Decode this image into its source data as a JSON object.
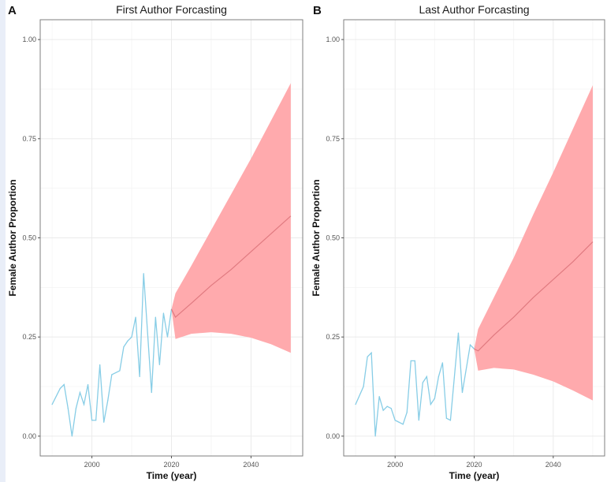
{
  "chart_data": [
    {
      "type": "line",
      "panel_label": "A",
      "title": "First Author Forcasting",
      "xlabel": "Time (year)",
      "ylabel": "Female Author Proportion",
      "xlim": [
        1987,
        2053
      ],
      "ylim": [
        -0.05,
        1.05
      ],
      "x_ticks": [
        2000,
        2020,
        2040
      ],
      "y_ticks": [
        "0.00",
        "0.25",
        "0.50",
        "0.75",
        "1.00"
      ],
      "grid": true,
      "colors": {
        "observed": "#87cde6",
        "forecast_band": "#ffaaad",
        "forecast_mean": "#e07a80"
      },
      "observed": {
        "x": [
          1990,
          1992,
          1993,
          1994,
          1995,
          1996,
          1997,
          1998,
          1999,
          2000,
          2001,
          2002,
          2003,
          2004,
          2005,
          2006,
          2007,
          2008,
          2009,
          2010,
          2011,
          2012,
          2013,
          2015,
          2016,
          2017,
          2018,
          2019,
          2020
        ],
        "y": [
          0.08,
          0.12,
          0.13,
          0.07,
          0.0,
          0.07,
          0.11,
          0.08,
          0.13,
          0.04,
          0.04,
          0.18,
          0.035,
          0.09,
          0.155,
          0.16,
          0.165,
          0.225,
          0.24,
          0.25,
          0.3,
          0.15,
          0.41,
          0.11,
          0.3,
          0.18,
          0.31,
          0.25,
          0.32
        ]
      },
      "forecast": {
        "x": [
          2021,
          2025,
          2030,
          2035,
          2040,
          2045,
          2050
        ],
        "mean": [
          0.3,
          0.335,
          0.38,
          0.42,
          0.465,
          0.51,
          0.555
        ],
        "upper": [
          0.36,
          0.43,
          0.52,
          0.61,
          0.7,
          0.795,
          0.89
        ],
        "lower": [
          0.245,
          0.258,
          0.262,
          0.258,
          0.248,
          0.232,
          0.21
        ]
      }
    },
    {
      "type": "line",
      "panel_label": "B",
      "title": "Last Author Forcasting",
      "xlabel": "Time (year)",
      "ylabel": "Female Author Proportion",
      "xlim": [
        1987,
        2053
      ],
      "ylim": [
        -0.05,
        1.05
      ],
      "x_ticks": [
        2000,
        2020,
        2040
      ],
      "y_ticks": [
        "0.00",
        "0.25",
        "0.50",
        "0.75",
        "1.00"
      ],
      "grid": true,
      "colors": {
        "observed": "#87cde6",
        "forecast_band": "#ffaaad",
        "forecast_mean": "#e07a80"
      },
      "observed": {
        "x": [
          1990,
          1992,
          1993,
          1994,
          1995,
          1996,
          1997,
          1998,
          1999,
          2000,
          2001,
          2002,
          2003,
          2004,
          2005,
          2006,
          2007,
          2008,
          2009,
          2010,
          2011,
          2012,
          2013,
          2014,
          2016,
          2017,
          2019,
          2020
        ],
        "y": [
          0.08,
          0.125,
          0.2,
          0.21,
          0.0,
          0.1,
          0.065,
          0.075,
          0.07,
          0.04,
          0.035,
          0.03,
          0.06,
          0.19,
          0.19,
          0.04,
          0.135,
          0.15,
          0.08,
          0.095,
          0.15,
          0.185,
          0.045,
          0.04,
          0.26,
          0.11,
          0.23,
          0.22
        ]
      },
      "forecast": {
        "x": [
          2021,
          2025,
          2030,
          2035,
          2040,
          2045,
          2050
        ],
        "mean": [
          0.215,
          0.255,
          0.3,
          0.35,
          0.395,
          0.44,
          0.49
        ],
        "upper": [
          0.27,
          0.35,
          0.45,
          0.56,
          0.665,
          0.775,
          0.885
        ],
        "lower": [
          0.165,
          0.172,
          0.168,
          0.155,
          0.138,
          0.115,
          0.09
        ]
      }
    }
  ]
}
